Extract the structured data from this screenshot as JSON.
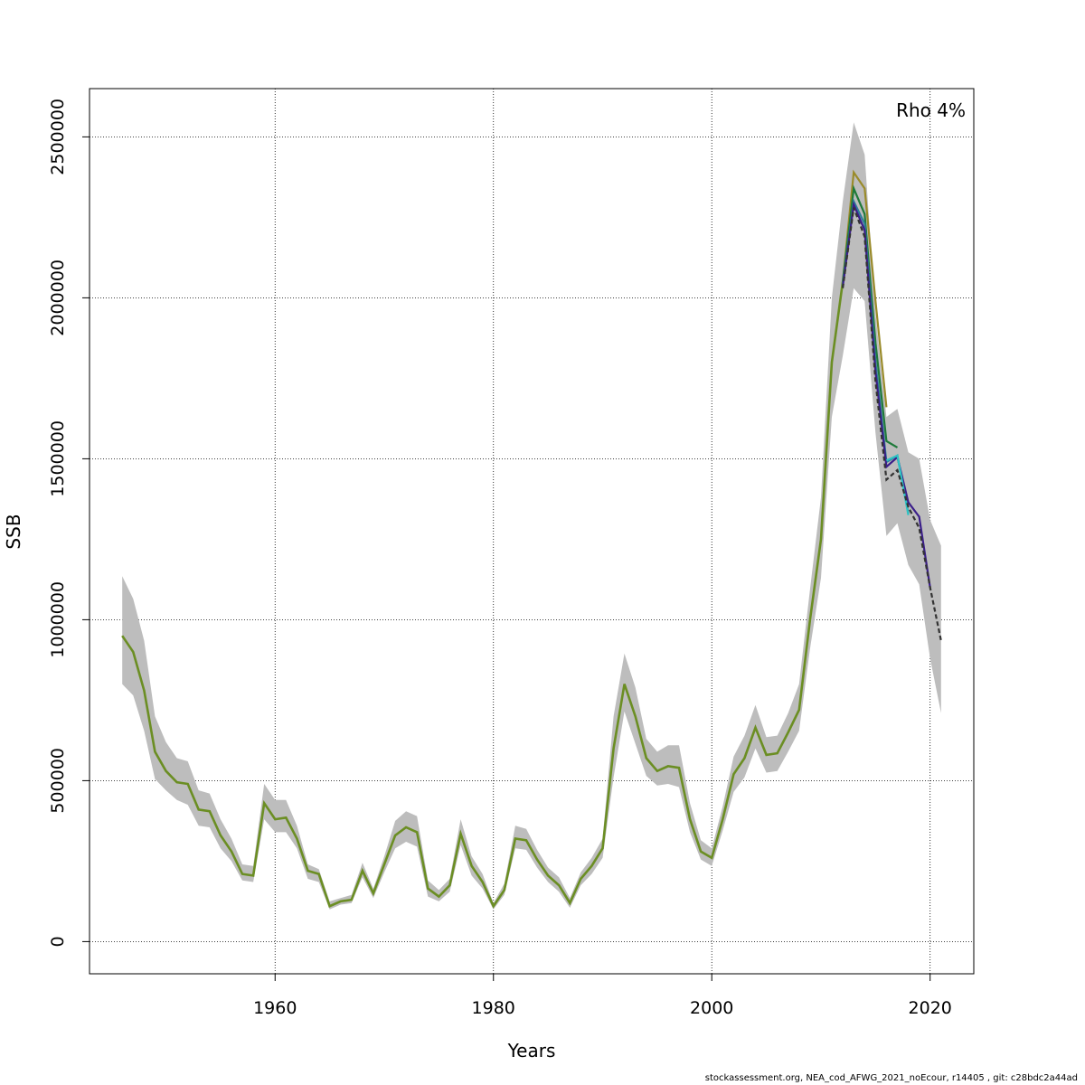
{
  "chart_data": {
    "type": "line",
    "xlabel": "Years",
    "ylabel": "SSB",
    "xlim": [
      1943,
      2024
    ],
    "ylim": [
      -100000,
      2650000
    ],
    "x_ticks": [
      1960,
      1980,
      2000,
      2020
    ],
    "y_ticks": [
      0,
      500000,
      1000000,
      1500000,
      2000000,
      2500000
    ],
    "x_tick_labels": [
      "1960",
      "1980",
      "2000",
      "2020"
    ],
    "y_tick_labels": [
      "0",
      "500000",
      "1000000",
      "1500000",
      "2000000",
      "2500000"
    ],
    "grid": true,
    "annotation": "Rho 4%",
    "base": {
      "years": [
        1946,
        1947,
        1948,
        1949,
        1950,
        1951,
        1952,
        1953,
        1954,
        1955,
        1956,
        1957,
        1958,
        1959,
        1960,
        1961,
        1962,
        1963,
        1964,
        1965,
        1966,
        1967,
        1968,
        1969,
        1970,
        1971,
        1972,
        1973,
        1974,
        1975,
        1976,
        1977,
        1978,
        1979,
        1980,
        1981,
        1982,
        1983,
        1984,
        1985,
        1986,
        1987,
        1988,
        1989,
        1990,
        1991,
        1992,
        1993,
        1994,
        1995,
        1996,
        1997,
        1998,
        1999,
        2000,
        2001,
        2002,
        2003,
        2004,
        2005,
        2006,
        2007,
        2008,
        2009,
        2010,
        2011,
        2012
      ],
      "values": [
        950000,
        900000,
        780000,
        590000,
        530000,
        495000,
        490000,
        410000,
        405000,
        330000,
        280000,
        210000,
        205000,
        430000,
        380000,
        385000,
        320000,
        220000,
        210000,
        110000,
        125000,
        130000,
        220000,
        150000,
        240000,
        330000,
        355000,
        340000,
        165000,
        140000,
        175000,
        335000,
        235000,
        185000,
        110000,
        160000,
        320000,
        315000,
        255000,
        205000,
        175000,
        120000,
        195000,
        235000,
        290000,
        600000,
        800000,
        700000,
        570000,
        530000,
        545000,
        540000,
        380000,
        280000,
        260000,
        380000,
        520000,
        570000,
        665000,
        580000,
        585000,
        650000,
        720000,
        1000000,
        1250000,
        1800000,
        2050000
      ]
    },
    "ci": {
      "upper": [
        1135000,
        1065000,
        935000,
        700000,
        620000,
        570000,
        560000,
        470000,
        460000,
        380000,
        320000,
        240000,
        235000,
        490000,
        440000,
        440000,
        360000,
        240000,
        225000,
        125000,
        135000,
        145000,
        245000,
        165000,
        265000,
        375000,
        405000,
        390000,
        190000,
        160000,
        195000,
        380000,
        265000,
        210000,
        120000,
        180000,
        360000,
        350000,
        285000,
        230000,
        200000,
        135000,
        215000,
        260000,
        320000,
        700000,
        895000,
        790000,
        630000,
        590000,
        610000,
        610000,
        430000,
        315000,
        290000,
        420000,
        575000,
        640000,
        735000,
        635000,
        640000,
        710000,
        800000,
        1095000,
        1380000,
        2000000,
        2300000,
        2545000,
        2445000,
        1950000,
        1630000,
        1655000,
        1520000,
        1500000,
        1310000,
        1230000
      ],
      "lower": [
        800000,
        765000,
        655000,
        505000,
        470000,
        440000,
        425000,
        360000,
        355000,
        290000,
        250000,
        190000,
        185000,
        380000,
        340000,
        340000,
        290000,
        195000,
        185000,
        100000,
        115000,
        120000,
        200000,
        135000,
        215000,
        290000,
        310000,
        295000,
        140000,
        125000,
        155000,
        300000,
        205000,
        165000,
        100000,
        145000,
        290000,
        285000,
        230000,
        185000,
        155000,
        105000,
        175000,
        210000,
        260000,
        510000,
        715000,
        615000,
        515000,
        485000,
        490000,
        480000,
        340000,
        255000,
        235000,
        345000,
        465000,
        510000,
        600000,
        525000,
        530000,
        590000,
        655000,
        910000,
        1130000,
        1630000,
        1820000,
        2030000,
        1990000,
        1580000,
        1260000,
        1300000,
        1170000,
        1110000,
        880000,
        710000
      ]
    },
    "series": [
      {
        "name": "",
        "color": "#9a8b2a",
        "years": [
          2012,
          2013,
          2014,
          2015,
          2016
        ],
        "values": [
          2050000,
          2390000,
          2340000,
          1990000,
          1660000
        ]
      },
      {
        "name": "",
        "color": "#1f7a3a",
        "years": [
          2012,
          2013,
          2014,
          2015,
          2016,
          2017
        ],
        "values": [
          2050000,
          2340000,
          2260000,
          1860000,
          1555000,
          1535000
        ]
      },
      {
        "name": "",
        "color": "#2d7e9a",
        "years": [
          2012,
          2013,
          2014,
          2015,
          2016,
          2017,
          2018
        ],
        "values": [
          2040000,
          2300000,
          2230000,
          1800000,
          1490000,
          1510000,
          1330000
        ]
      },
      {
        "name": "",
        "color": "#3b1e8a",
        "years": [
          2012,
          2013,
          2014,
          2015,
          2016,
          2017,
          2018,
          2019,
          2020
        ],
        "values": [
          2035000,
          2290000,
          2210000,
          1770000,
          1475000,
          1505000,
          1365000,
          1320000,
          1100000
        ]
      },
      {
        "name": "",
        "color": "#2ec4c4",
        "years": [
          2016,
          2017,
          2018
        ],
        "values": [
          1495000,
          1510000,
          1325000
        ]
      },
      {
        "name": "",
        "color": "#333333",
        "dashed": true,
        "years": [
          2012,
          2013,
          2014,
          2015,
          2016,
          2017,
          2018,
          2019,
          2020,
          2021
        ],
        "values": [
          2030000,
          2280000,
          2190000,
          1740000,
          1435000,
          1465000,
          1350000,
          1285000,
          1100000,
          935000
        ]
      }
    ],
    "base_style": {
      "color": "#6b8e23"
    }
  },
  "footer": "stockassessment.org, NEA_cod_AFWG_2021_noEcour, r14405 , git: c28bdc2a44ad"
}
